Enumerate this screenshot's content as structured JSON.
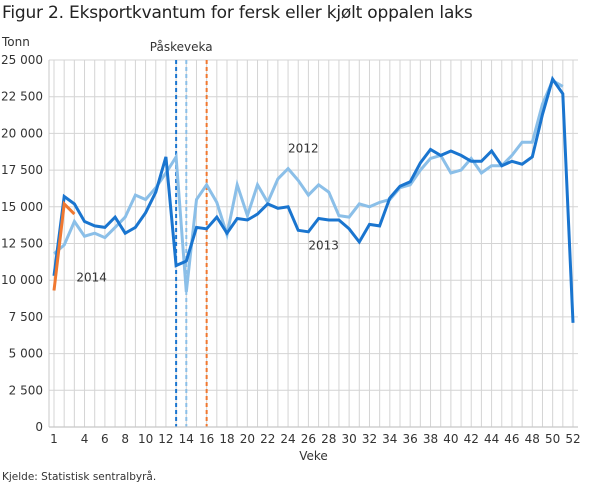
{
  "title": "Figur 2. Eksportkvantum for fersk eller kjølt oppalen laks",
  "source": "Kjelde: Statistisk sentralbyrå.",
  "chart_data": {
    "type": "line",
    "title": "Figur 2. Eksportkvantum for fersk eller kjølt oppalen laks",
    "ylabel": "Tonn",
    "xlabel": "Veke",
    "ylim": [
      0,
      25000
    ],
    "xlim": [
      1,
      52
    ],
    "grid": true,
    "y_ticks": [
      0,
      2500,
      5000,
      7500,
      10000,
      12500,
      15000,
      17500,
      20000,
      22500,
      25000
    ],
    "y_tick_labels": [
      "0",
      "2 500",
      "5 000",
      "7 500",
      "10 000",
      "12 500",
      "15 000",
      "17 500",
      "20 000",
      "22 500",
      "25 000"
    ],
    "x_ticks": [
      1,
      4,
      6,
      8,
      10,
      12,
      14,
      16,
      18,
      20,
      22,
      24,
      26,
      28,
      30,
      32,
      34,
      36,
      38,
      40,
      42,
      44,
      46,
      48,
      50,
      52
    ],
    "x_tick_labels": [
      "1",
      "4",
      "6",
      "8",
      "10",
      "12",
      "14",
      "16",
      "18",
      "20",
      "22",
      "24",
      "26",
      "28",
      "30",
      "32",
      "34",
      "36",
      "38",
      "40",
      "42",
      "44",
      "46",
      "48",
      "50",
      "52"
    ],
    "annotation": "Påskeveka",
    "easter_weeks": [
      {
        "year": "2013",
        "week": 13,
        "color": "#1a75cf"
      },
      {
        "year": "2012",
        "week": 14,
        "color": "#8bbfe8"
      },
      {
        "year": "2014",
        "week": 16,
        "color": "#f07830"
      }
    ],
    "series": [
      {
        "name": "2012",
        "color": "#8bbfe8",
        "label_week": 24,
        "label_value": 18700,
        "x": [
          1,
          2,
          3,
          4,
          5,
          6,
          7,
          8,
          9,
          10,
          11,
          12,
          13,
          14,
          15,
          16,
          17,
          18,
          19,
          20,
          21,
          22,
          23,
          24,
          25,
          26,
          27,
          28,
          29,
          30,
          31,
          32,
          33,
          34,
          35,
          36,
          37,
          38,
          39,
          40,
          41,
          42,
          43,
          44,
          45,
          46,
          47,
          48,
          49,
          50,
          51
        ],
        "values": [
          11800,
          12400,
          14000,
          13000,
          13200,
          12900,
          13600,
          14300,
          15800,
          15500,
          16300,
          17300,
          18400,
          9200,
          15500,
          16500,
          15300,
          13100,
          16500,
          14400,
          16500,
          15300,
          16900,
          17600,
          16800,
          15800,
          16500,
          16000,
          14400,
          14300,
          15200,
          15000,
          15300,
          15500,
          16300,
          16500,
          17500,
          18300,
          18500,
          17300,
          17500,
          18300,
          17300,
          17800,
          17800,
          18500,
          19400,
          19400,
          22000,
          23600,
          23200
        ]
      },
      {
        "name": "2013",
        "color": "#1a75cf",
        "label_week": 26,
        "label_value": 12100,
        "x": [
          1,
          2,
          3,
          4,
          5,
          6,
          7,
          8,
          9,
          10,
          11,
          12,
          13,
          14,
          15,
          16,
          17,
          18,
          19,
          20,
          21,
          22,
          23,
          24,
          25,
          26,
          27,
          28,
          29,
          30,
          31,
          32,
          33,
          34,
          35,
          36,
          37,
          38,
          39,
          40,
          41,
          42,
          43,
          44,
          45,
          46,
          47,
          48,
          49,
          50,
          51,
          52
        ],
        "values": [
          10300,
          15700,
          15200,
          14000,
          13700,
          13600,
          14300,
          13200,
          13600,
          14600,
          16000,
          18400,
          11000,
          11300,
          13600,
          13500,
          14300,
          13200,
          14200,
          14100,
          14500,
          15200,
          14900,
          15000,
          13400,
          13300,
          14200,
          14100,
          14100,
          13500,
          12600,
          13800,
          13700,
          15600,
          16400,
          16700,
          18000,
          18900,
          18500,
          18800,
          18500,
          18100,
          18100,
          18800,
          17800,
          18100,
          17900,
          18400,
          21300,
          23700,
          22700,
          7100
        ]
      },
      {
        "name": "2014",
        "color": "#f07830",
        "label_week": 3.2,
        "label_value": 9900,
        "x": [
          1,
          2,
          3
        ],
        "values": [
          9300,
          15200,
          14500
        ]
      }
    ]
  }
}
